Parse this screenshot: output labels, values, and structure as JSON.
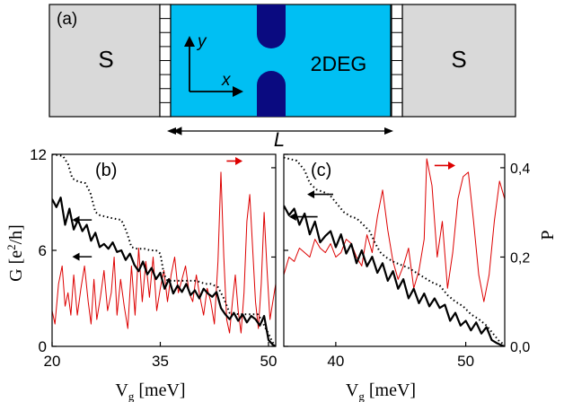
{
  "schematic": {
    "panel_label": "(a)",
    "left_lead": "S",
    "right_lead": "S",
    "region_label": "2DEG",
    "axis_y": "y",
    "axis_x": "x",
    "length_label": "L",
    "colors": {
      "lead": "#d9d9d9",
      "region": "#00bff3",
      "constriction": "#0a0a80"
    }
  },
  "chart_data": [
    {
      "type": "line",
      "panel_label": "(b)",
      "xlabel": "V_g [meV]",
      "ylabel_left": "G [e²/h]",
      "ylabel_right": "P",
      "xlim": [
        20,
        51
      ],
      "ylim_left": [
        0,
        12
      ],
      "ylim_right": [
        0,
        0.43
      ],
      "x_ticks": [
        "20",
        "35",
        "50"
      ],
      "y_ticks_left": [
        "0",
        "6",
        "12"
      ],
      "y_ticks_right": [
        "0,0",
        "0,2",
        "0,4"
      ],
      "series": [
        {
          "axis": "left",
          "style": "solid",
          "color": "#000000",
          "width": 2.2,
          "x": [
            20,
            20.6,
            21.2,
            21.8,
            22.4,
            23,
            23.6,
            24.2,
            24.8,
            25.4,
            26,
            26.6,
            27.2,
            27.8,
            28.4,
            29,
            29.6,
            30.2,
            30.8,
            31.4,
            32,
            32.6,
            33.2,
            33.8,
            34.4,
            35,
            35.6,
            36.2,
            36.8,
            37.4,
            38,
            38.6,
            39.2,
            39.8,
            40.4,
            41,
            41.6,
            42.2,
            42.8,
            43.4,
            44,
            44.6,
            45.2,
            45.8,
            46.4,
            47,
            47.6,
            48.2,
            48.8,
            49.4,
            50,
            50.6,
            51
          ],
          "y": [
            9.2,
            8.7,
            9.3,
            7.6,
            8.6,
            7.3,
            7.9,
            7.2,
            7.6,
            6.6,
            7.1,
            6.2,
            6.4,
            6.1,
            6.5,
            5.9,
            6.0,
            5.4,
            5.8,
            5.1,
            4.7,
            5.3,
            4.5,
            4.9,
            4.2,
            4.6,
            3.6,
            4.2,
            3.3,
            3.8,
            3.4,
            3.9,
            3.2,
            3.5,
            3.0,
            3.6,
            3.3,
            3.1,
            3.4,
            2.4,
            2.0,
            1.7,
            2.1,
            1.6,
            2.0,
            1.5,
            1.9,
            1.7,
            1.3,
            1.9,
            0.4,
            0.1,
            0.0
          ]
        },
        {
          "axis": "left",
          "style": "dotted",
          "color": "#000000",
          "width": 2,
          "x": [
            20,
            21.5,
            22.2,
            22.8,
            23.6,
            24.6,
            25.3,
            26.0,
            26.6,
            27.5,
            28.4,
            29.6,
            30.3,
            31.0,
            31.8,
            32.8,
            33.6,
            34.4,
            35.0,
            35.5,
            36.0,
            40.0,
            40.6,
            41.3,
            42.0,
            43.0,
            43.8,
            44.6,
            46.0,
            47.5,
            48.5,
            49.0,
            49.5,
            50.0,
            50.5,
            51
          ],
          "y": [
            12.0,
            11.9,
            11.4,
            10.5,
            10.3,
            10.2,
            9.6,
            8.4,
            8.2,
            8.1,
            8.0,
            7.9,
            7.2,
            6.2,
            6.1,
            6.1,
            6.0,
            6.0,
            5.8,
            4.5,
            4.1,
            4.1,
            4.0,
            3.9,
            3.9,
            3.7,
            3.0,
            2.1,
            2.0,
            2.0,
            2.0,
            1.7,
            1.2,
            0.8,
            0.3,
            0.0
          ]
        },
        {
          "axis": "right",
          "style": "solid",
          "color": "#dd0000",
          "width": 1,
          "x": [
            20,
            20.4,
            20.9,
            21.4,
            21.8,
            22.2,
            22.6,
            23.0,
            23.5,
            24.0,
            24.5,
            25.0,
            25.4,
            25.8,
            26.2,
            26.7,
            27.2,
            27.7,
            28.2,
            28.6,
            29.0,
            29.5,
            30.0,
            30.5,
            31.0,
            31.5,
            32.0,
            32.5,
            33.0,
            33.5,
            34.0,
            34.5,
            35.0,
            35.5,
            36.0,
            36.5,
            37.0,
            37.5,
            38.0,
            38.5,
            39.0,
            39.5,
            40.0,
            40.5,
            41.0,
            41.5,
            42.0,
            42.5,
            43.0,
            43.4,
            43.8,
            44.2,
            44.6,
            45.0,
            45.4,
            45.8,
            46.2,
            46.6,
            47.0,
            47.4,
            47.8,
            48.2,
            48.6,
            49.0,
            49.4,
            49.8,
            50.2,
            50.6,
            51
          ],
          "y": [
            0.08,
            0.05,
            0.14,
            0.18,
            0.09,
            0.12,
            0.07,
            0.16,
            0.07,
            0.13,
            0.18,
            0.1,
            0.05,
            0.15,
            0.06,
            0.11,
            0.17,
            0.08,
            0.12,
            0.2,
            0.07,
            0.15,
            0.09,
            0.04,
            0.18,
            0.07,
            0.22,
            0.1,
            0.19,
            0.11,
            0.2,
            0.08,
            0.13,
            0.17,
            0.1,
            0.16,
            0.2,
            0.12,
            0.15,
            0.18,
            0.12,
            0.1,
            0.16,
            0.11,
            0.07,
            0.13,
            0.1,
            0.05,
            0.19,
            0.39,
            0.2,
            0.06,
            0.03,
            0.1,
            0.16,
            0.08,
            0.03,
            0.12,
            0.28,
            0.34,
            0.22,
            0.1,
            0.04,
            0.14,
            0.3,
            0.17,
            0.06,
            0.1,
            0.14
          ]
        }
      ],
      "annotations": [
        {
          "type": "arrow",
          "color": "#000000",
          "direction": "left",
          "x_from": 25.5,
          "x_to": 22.8,
          "y": 7.9,
          "axis": "left"
        },
        {
          "type": "arrow",
          "color": "#000000",
          "direction": "left",
          "x_from": 25.5,
          "x_to": 22.8,
          "y": 5.6,
          "axis": "left"
        },
        {
          "type": "arrow",
          "color": "#dd0000",
          "direction": "right",
          "x_from": 44.2,
          "x_to": 46.4,
          "y": 0.415,
          "axis": "right"
        }
      ]
    },
    {
      "type": "line",
      "panel_label": "(c)",
      "xlabel": "V_g [meV]",
      "ylabel_left": "G [e²/h]",
      "ylabel_right": "P",
      "xlim": [
        36,
        53
      ],
      "ylim_left": [
        0,
        12
      ],
      "ylim_right": [
        0,
        0.43
      ],
      "x_ticks": [
        "40",
        "50"
      ],
      "y_ticks_left": [
        "0",
        "6",
        "12"
      ],
      "y_ticks_right": [
        "0,0",
        "0,2",
        "0,4"
      ],
      "series": [
        {
          "axis": "left",
          "style": "solid",
          "color": "#000000",
          "width": 2.2,
          "x": [
            36,
            36.4,
            36.8,
            37.2,
            37.6,
            38.0,
            38.4,
            38.8,
            39.2,
            39.6,
            40.0,
            40.4,
            40.8,
            41.2,
            41.6,
            42.0,
            42.4,
            42.8,
            43.2,
            43.6,
            44.0,
            44.4,
            44.8,
            45.2,
            45.6,
            46.0,
            46.4,
            46.8,
            47.2,
            47.6,
            48.0,
            48.4,
            48.8,
            49.2,
            49.6,
            50.0,
            50.4,
            50.8,
            51.2,
            51.6,
            52.0,
            52.4,
            52.8,
            53.0
          ],
          "y": [
            8.8,
            8.2,
            8.6,
            7.6,
            8.3,
            7.0,
            7.8,
            6.5,
            6.9,
            7.2,
            6.2,
            7.0,
            5.8,
            6.4,
            5.2,
            6.0,
            5.0,
            5.6,
            4.6,
            5.2,
            4.1,
            4.7,
            3.6,
            4.2,
            3.0,
            3.6,
            2.7,
            3.3,
            2.5,
            3.0,
            2.4,
            2.6,
            1.6,
            2.1,
            1.3,
            1.6,
            1.0,
            1.5,
            0.8,
            1.2,
            0.4,
            0.2,
            0.05,
            0.0
          ]
        },
        {
          "axis": "left",
          "style": "dotted",
          "color": "#000000",
          "width": 2,
          "x": [
            36,
            37.0,
            37.6,
            38.0,
            38.5,
            39.2,
            39.6,
            40.0,
            40.6,
            41.2,
            41.6,
            42.0,
            42.6,
            43.0,
            43.4,
            43.8,
            44.4,
            45.0,
            45.6,
            46.2,
            46.8,
            47.4,
            48.0,
            48.6,
            49.2,
            49.8,
            50.4,
            51.0,
            51.6,
            52.2,
            52.6,
            53.0
          ],
          "y": [
            11.8,
            11.6,
            11.0,
            10.2,
            9.8,
            9.6,
            9.4,
            9.0,
            8.4,
            8.1,
            8.0,
            7.7,
            7.2,
            6.5,
            5.9,
            5.6,
            5.3,
            5.1,
            4.9,
            4.6,
            4.3,
            4.0,
            3.8,
            3.2,
            2.8,
            2.5,
            2.0,
            1.7,
            1.3,
            0.7,
            0.3,
            0.1
          ]
        },
        {
          "axis": "right",
          "style": "solid",
          "color": "#dd0000",
          "width": 1,
          "x": [
            36,
            36.4,
            36.8,
            37.2,
            37.6,
            38.0,
            38.4,
            38.8,
            39.2,
            39.6,
            40.0,
            40.4,
            40.8,
            41.2,
            41.6,
            42.0,
            42.4,
            42.8,
            43.2,
            43.6,
            44.0,
            44.4,
            44.8,
            45.2,
            45.6,
            46.0,
            46.4,
            46.8,
            47.0,
            47.4,
            47.8,
            48.2,
            48.6,
            49.0,
            49.4,
            49.8,
            50.2,
            50.6,
            51.0,
            51.4,
            51.8,
            52.2,
            52.6,
            53.0
          ],
          "y": [
            0.16,
            0.2,
            0.19,
            0.22,
            0.21,
            0.2,
            0.24,
            0.22,
            0.21,
            0.23,
            0.2,
            0.21,
            0.24,
            0.23,
            0.2,
            0.18,
            0.25,
            0.21,
            0.29,
            0.35,
            0.26,
            0.19,
            0.15,
            0.18,
            0.22,
            0.13,
            0.17,
            0.24,
            0.42,
            0.36,
            0.2,
            0.28,
            0.13,
            0.21,
            0.33,
            0.38,
            0.39,
            0.28,
            0.16,
            0.1,
            0.16,
            0.28,
            0.37,
            0.33
          ]
        }
      ],
      "annotations": [
        {
          "type": "arrow",
          "color": "#000000",
          "direction": "left",
          "x_from": 39.8,
          "x_to": 37.8,
          "y": 9.5,
          "axis": "left"
        },
        {
          "type": "arrow",
          "color": "#000000",
          "direction": "left",
          "x_from": 38.6,
          "x_to": 36.4,
          "y": 8.1,
          "axis": "left"
        },
        {
          "type": "arrow",
          "color": "#dd0000",
          "direction": "right",
          "x_from": 47.6,
          "x_to": 49.2,
          "y": 0.405,
          "axis": "right"
        }
      ]
    }
  ]
}
